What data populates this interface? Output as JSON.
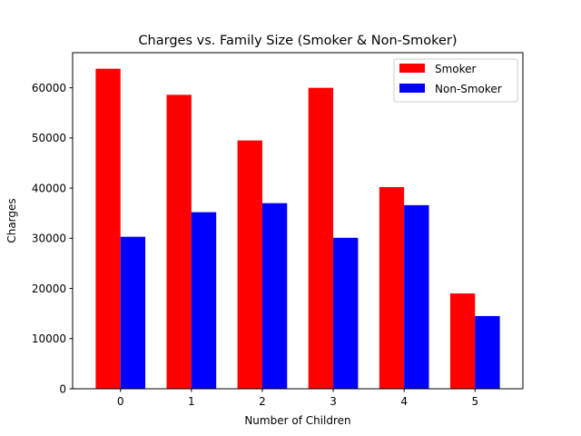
{
  "chart_data": {
    "type": "bar",
    "title": "Charges vs. Family Size (Smoker & Non-Smoker)",
    "xlabel": "Number of Children",
    "ylabel": "Charges",
    "categories": [
      "0",
      "1",
      "2",
      "3",
      "4",
      "5"
    ],
    "series": [
      {
        "name": "Smoker",
        "color": "#ff0000",
        "values": [
          63800,
          58600,
          49500,
          60000,
          40200,
          19000
        ]
      },
      {
        "name": "Non-Smoker",
        "color": "#0000ff",
        "values": [
          30300,
          35200,
          37000,
          30100,
          36600,
          14500
        ]
      }
    ],
    "ylim": [
      0,
      67000
    ],
    "yticks": [
      0,
      10000,
      20000,
      30000,
      40000,
      50000,
      60000
    ],
    "ytick_labels": [
      "0",
      "10000",
      "20000",
      "30000",
      "40000",
      "50000",
      "60000"
    ],
    "grid": false,
    "legend": "top-right"
  }
}
